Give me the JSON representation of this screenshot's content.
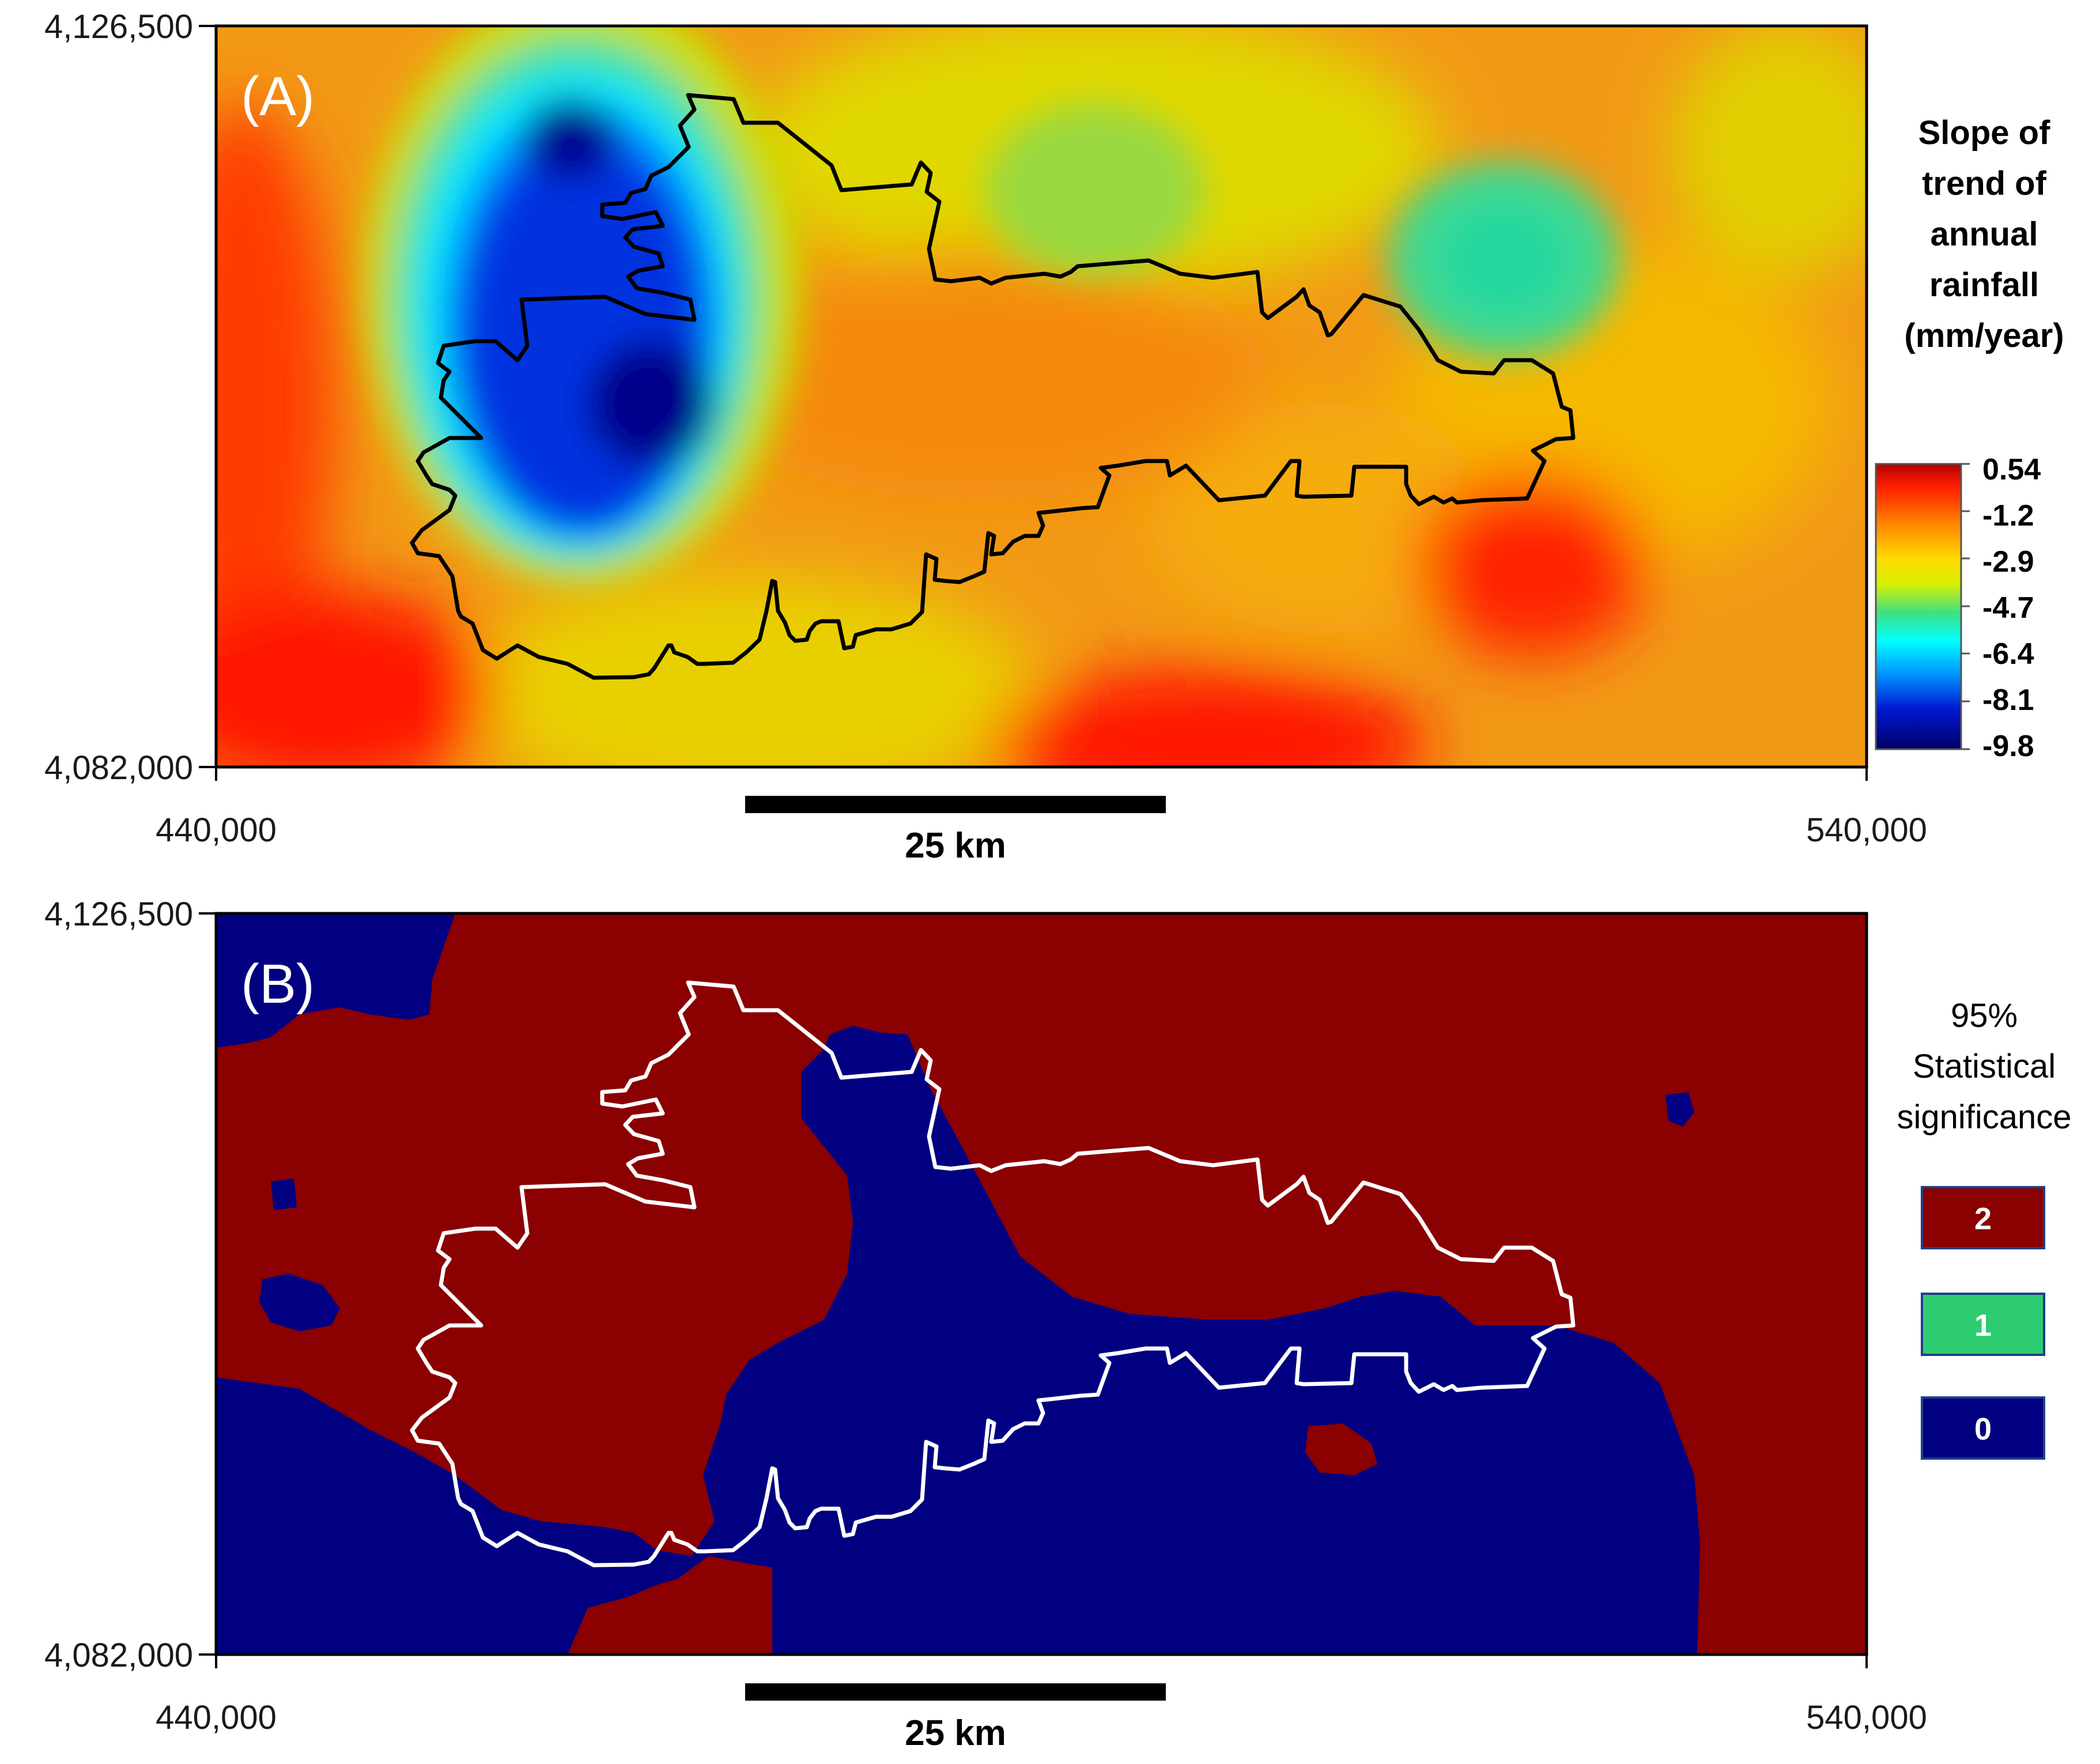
{
  "panels": {
    "a": {
      "label": "(A)",
      "y_top": "4,126,500",
      "y_bottom": "4,082,000",
      "x_left": "440,000",
      "x_right": "540,000",
      "scale_bar": "25 km",
      "legend_title": [
        "Slope of",
        "trend of",
        "annual",
        "rainfall",
        "(mm/year)"
      ],
      "colorbar_ticks": [
        "0.54",
        "-1.2",
        "-2.9",
        "-4.7",
        "-6.4",
        "-8.1",
        "-9.8"
      ]
    },
    "b": {
      "label": "(B)",
      "y_top": "4,126,500",
      "y_bottom": "4,082,000",
      "x_left": "440,000",
      "x_right": "540,000",
      "scale_bar": "25 km",
      "legend_title": [
        "95%",
        "Statistical",
        "significance"
      ],
      "classes": [
        {
          "value": "2",
          "color": "#8b0000"
        },
        {
          "value": "1",
          "color": "#2ecc71"
        },
        {
          "value": "0",
          "color": "#000080"
        }
      ]
    }
  },
  "colors": {
    "sig_high": "#8b0000",
    "sig_low": "#000080",
    "outline_a": "#000000",
    "outline_b": "#ffffff"
  }
}
